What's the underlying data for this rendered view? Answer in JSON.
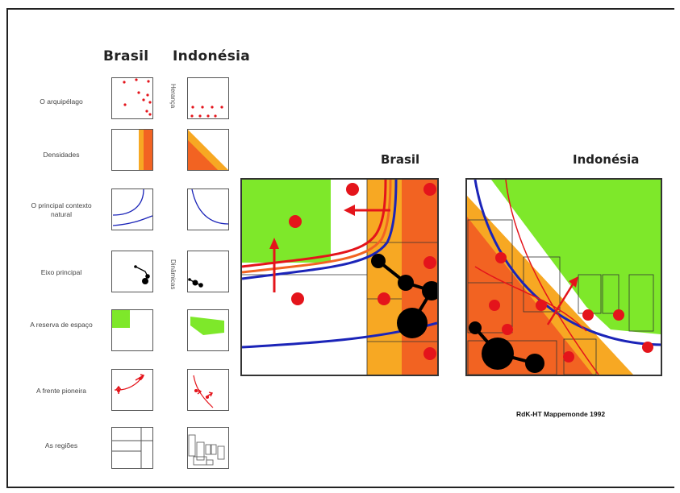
{
  "headings": {
    "brasil": "Brasil",
    "indonesia": "Indonésia"
  },
  "rows": [
    {
      "label": "O arquipélago"
    },
    {
      "label": "Densidades"
    },
    {
      "label": "O principal contexto natural"
    },
    {
      "label": "Eixo principal"
    },
    {
      "label": "A reserva de espaço"
    },
    {
      "label": "A frente pioneira"
    },
    {
      "label": "As regiões"
    }
  ],
  "side_labels": {
    "upper": "Herança",
    "lower": "Dinâmicas"
  },
  "large_maps": {
    "brasil_title": "Brasil",
    "indonesia_title": "Indonésia"
  },
  "credit": "RdK-HT Mappemonde 1992",
  "colors": {
    "red": "#e4141b",
    "orange": "#f26322",
    "yellow": "#f7a823",
    "green": "#7ee82a",
    "blue": "#1b24b8",
    "black": "#000000"
  }
}
